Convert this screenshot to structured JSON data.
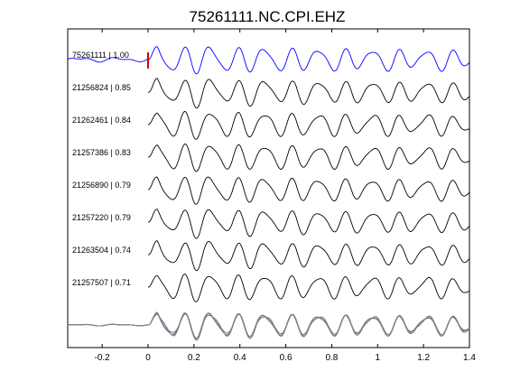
{
  "chart_data": {
    "type": "line",
    "title": "75261111.NC.CPI.EHZ",
    "xlabel": "",
    "ylabel": "",
    "xlim": [
      -0.35,
      1.4
    ],
    "x_ticks": [
      -0.2,
      0,
      0.2,
      0.4,
      0.6,
      0.8,
      1,
      1.2,
      1.4
    ],
    "x_tick_labels": [
      "-0.2",
      "0",
      "0.2",
      "0.4",
      "0.6",
      "0.8",
      "1",
      "1.2",
      "1.4"
    ],
    "grid": false,
    "legend": "none",
    "pick_time": 0,
    "colors": {
      "master": "#0000ff",
      "trace": "#000000",
      "stack": "#808080",
      "pick": "#cc0000"
    },
    "series": [
      {
        "label": "75261111 | 1.00",
        "id": "75261111",
        "cc": 1.0,
        "seed": 1
      },
      {
        "label": "21256824 | 0.85",
        "id": "21256824",
        "cc": 0.85,
        "seed": 2
      },
      {
        "label": "21262461 | 0.84",
        "id": "21262461",
        "cc": 0.84,
        "seed": 3
      },
      {
        "label": "21257386 | 0.83",
        "id": "21257386",
        "cc": 0.83,
        "seed": 4
      },
      {
        "label": "21256890 | 0.79",
        "id": "21256890",
        "cc": 0.79,
        "seed": 5
      },
      {
        "label": "21257220 | 0.79",
        "id": "21257220",
        "cc": 0.79,
        "seed": 6
      },
      {
        "label": "21263504 | 0.74",
        "id": "21263504",
        "cc": 0.74,
        "seed": 7
      },
      {
        "label": "21257507 | 0.71",
        "id": "21257507",
        "cc": 0.71,
        "seed": 8
      }
    ]
  }
}
